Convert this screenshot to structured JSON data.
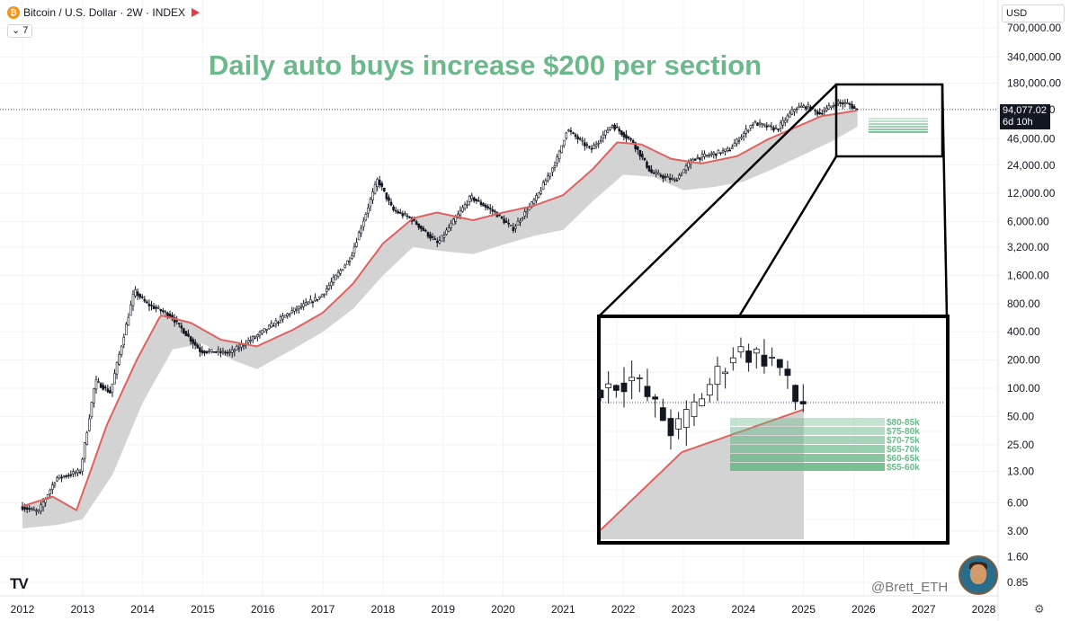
{
  "legend": {
    "symbol_icon": "bitcoin-icon",
    "symbol": "Bitcoin / U.S. Dollar · 2W · INDEX",
    "indicator_count": "⌄ 7"
  },
  "headline": "Daily auto buys increase $200 per section",
  "currency": "USD",
  "price_tag": {
    "price": "94,077.02",
    "countdown": "6d 10h"
  },
  "watermark": "@Brett_ETH",
  "colors": {
    "headline": "#6bb98a",
    "ma": "#e0625f",
    "band": "#d3d3d3",
    "zone": "#6bb98a"
  },
  "chart_data": {
    "type": "candlestick",
    "yscale": "log",
    "ylim": [
      0.85,
      700000
    ],
    "xlim": [
      "2012-01",
      "2028-01"
    ],
    "x_ticks": [
      "2012",
      "2013",
      "2014",
      "2015",
      "2016",
      "2017",
      "2018",
      "2019",
      "2020",
      "2021",
      "2022",
      "2023",
      "2024",
      "2025",
      "2026",
      "2027",
      "2028"
    ],
    "y_ticks": [
      "700,000.00",
      "340,000.00",
      "180,000.00",
      "94,000.00",
      "46,000.00",
      "24,000.00",
      "12,000.00",
      "6,000.00",
      "3,200.00",
      "1,600.00",
      "800.00",
      "400.00",
      "200.00",
      "100.00",
      "50.00",
      "25.00",
      "13.00",
      "6.00",
      "3.00",
      "1.60",
      "0.85"
    ],
    "last_price": 94077.02,
    "price_path": [
      [
        2012.0,
        5.5
      ],
      [
        2012.3,
        4.8
      ],
      [
        2012.6,
        11
      ],
      [
        2013.0,
        13
      ],
      [
        2013.25,
        120
      ],
      [
        2013.5,
        90
      ],
      [
        2013.9,
        1100
      ],
      [
        2014.1,
        800
      ],
      [
        2014.5,
        600
      ],
      [
        2015.0,
        250
      ],
      [
        2015.5,
        240
      ],
      [
        2015.9,
        350
      ],
      [
        2016.5,
        650
      ],
      [
        2017.0,
        950
      ],
      [
        2017.5,
        2500
      ],
      [
        2017.95,
        17000
      ],
      [
        2018.2,
        8000
      ],
      [
        2018.5,
        6500
      ],
      [
        2018.95,
        3500
      ],
      [
        2019.5,
        11000
      ],
      [
        2019.9,
        7500
      ],
      [
        2020.2,
        5000
      ],
      [
        2020.6,
        11000
      ],
      [
        2020.95,
        29000
      ],
      [
        2021.1,
        58000
      ],
      [
        2021.5,
        35000
      ],
      [
        2021.85,
        65000
      ],
      [
        2022.2,
        42000
      ],
      [
        2022.5,
        20000
      ],
      [
        2022.9,
        16500
      ],
      [
        2023.2,
        28000
      ],
      [
        2023.8,
        35000
      ],
      [
        2024.2,
        68000
      ],
      [
        2024.6,
        58000
      ],
      [
        2024.9,
        98000
      ],
      [
        2025.1,
        102000
      ],
      [
        2025.3,
        85000
      ],
      [
        2025.6,
        112000
      ],
      [
        2025.8,
        108000
      ],
      [
        2025.9,
        94077
      ]
    ],
    "ma_path": [
      [
        2012.0,
        5.5
      ],
      [
        2012.5,
        7
      ],
      [
        2012.9,
        5
      ],
      [
        2013.4,
        40
      ],
      [
        2013.9,
        200
      ],
      [
        2014.3,
        600
      ],
      [
        2014.8,
        500
      ],
      [
        2015.3,
        330
      ],
      [
        2015.9,
        280
      ],
      [
        2016.5,
        420
      ],
      [
        2017.0,
        640
      ],
      [
        2017.5,
        1300
      ],
      [
        2018.0,
        3500
      ],
      [
        2018.5,
        6500
      ],
      [
        2018.9,
        7500
      ],
      [
        2019.5,
        6200
      ],
      [
        2020.0,
        7500
      ],
      [
        2020.5,
        8800
      ],
      [
        2021.0,
        11500
      ],
      [
        2021.5,
        22000
      ],
      [
        2021.9,
        42000
      ],
      [
        2022.3,
        40000
      ],
      [
        2022.8,
        28000
      ],
      [
        2023.3,
        25000
      ],
      [
        2023.9,
        30000
      ],
      [
        2024.4,
        45000
      ],
      [
        2024.9,
        62000
      ],
      [
        2025.3,
        80000
      ],
      [
        2025.9,
        92000
      ]
    ],
    "band_lower": [
      [
        2012.0,
        3.2
      ],
      [
        2012.6,
        3.5
      ],
      [
        2013.0,
        4
      ],
      [
        2013.5,
        12
      ],
      [
        2014.0,
        70
      ],
      [
        2014.5,
        260
      ],
      [
        2015.0,
        300
      ],
      [
        2015.5,
        200
      ],
      [
        2015.9,
        160
      ],
      [
        2016.5,
        260
      ],
      [
        2017.0,
        400
      ],
      [
        2017.5,
        700
      ],
      [
        2018.0,
        1600
      ],
      [
        2018.5,
        3200
      ],
      [
        2019.0,
        2900
      ],
      [
        2019.5,
        2700
      ],
      [
        2020.0,
        3400
      ],
      [
        2020.5,
        4200
      ],
      [
        2021.0,
        4900
      ],
      [
        2021.5,
        10000
      ],
      [
        2022.0,
        19000
      ],
      [
        2022.5,
        18000
      ],
      [
        2023.0,
        13000
      ],
      [
        2023.5,
        14000
      ],
      [
        2024.0,
        16000
      ],
      [
        2024.5,
        22000
      ],
      [
        2025.0,
        31000
      ],
      [
        2025.5,
        44000
      ],
      [
        2025.9,
        62000
      ]
    ],
    "zones": [
      "$80-85k",
      "$75-80k",
      "$70-75k",
      "$65-70k",
      "$60-65k",
      "$55-60k"
    ],
    "inset": {
      "shown": "zoomed view of 2025–2026 price and buy zones"
    }
  }
}
